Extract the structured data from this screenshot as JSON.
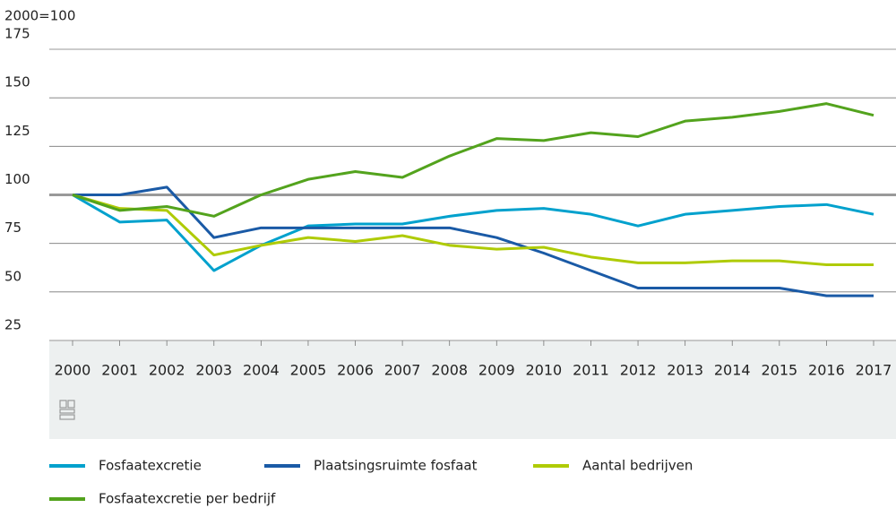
{
  "chart_data": {
    "type": "line",
    "y_label": "2000=100",
    "categories": [
      "2000",
      "2001",
      "2002",
      "2003",
      "2004",
      "2005",
      "2006",
      "2007",
      "2008",
      "2009",
      "2010",
      "2011",
      "2012",
      "2013",
      "2014",
      "2015",
      "2016",
      "2017"
    ],
    "series": [
      {
        "name": "Fosfaatexcretie",
        "color": "#00a1cd",
        "values": [
          100,
          86,
          87,
          61,
          74,
          84,
          85,
          85,
          89,
          92,
          93,
          90,
          84,
          90,
          92,
          94,
          95,
          90
        ]
      },
      {
        "name": "Plaatsingsruimte fosfaat",
        "color": "#1a5aa6",
        "values": [
          100,
          100,
          104,
          78,
          83,
          83,
          83,
          83,
          83,
          78,
          70,
          61,
          52,
          52,
          52,
          52,
          48,
          48
        ]
      },
      {
        "name": "Aantal bedrijven",
        "color": "#afcb05",
        "values": [
          100,
          93,
          92,
          69,
          74,
          78,
          76,
          79,
          74,
          72,
          73,
          68,
          65,
          65,
          66,
          66,
          64,
          64
        ]
      },
      {
        "name": "Fosfaatexcretie per bedrijf",
        "color": "#53a31d",
        "values": [
          100,
          92,
          94,
          89,
          100,
          108,
          112,
          109,
          120,
          129,
          128,
          132,
          130,
          138,
          140,
          143,
          147,
          141
        ]
      }
    ],
    "ylim": [
      25,
      175
    ],
    "yticks": [
      25,
      50,
      75,
      100,
      125,
      150,
      175
    ],
    "grid": true,
    "reference_line": 100
  }
}
